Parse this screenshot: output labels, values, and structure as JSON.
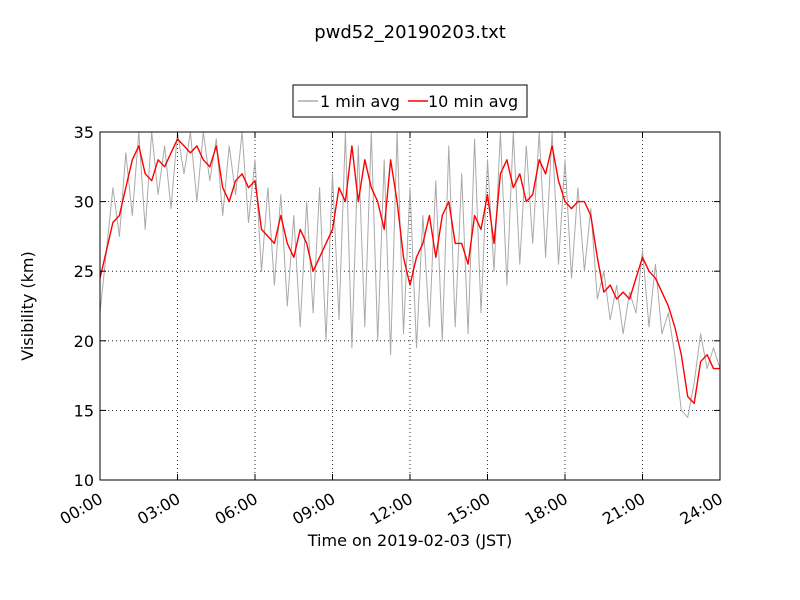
{
  "chart_data": {
    "type": "line",
    "title": "pwd52_20190203.txt",
    "xlabel": "Time on 2019-02-03 (JST)",
    "ylabel": "Visibility (km)",
    "xlim_hours": [
      0,
      24
    ],
    "ylim": [
      10,
      35
    ],
    "x_ticks": [
      0,
      3,
      6,
      9,
      12,
      15,
      18,
      21,
      24
    ],
    "x_tick_labels": [
      "00:00",
      "03:00",
      "06:00",
      "09:00",
      "12:00",
      "15:00",
      "18:00",
      "21:00",
      "24:00"
    ],
    "y_ticks": [
      10,
      15,
      20,
      25,
      30,
      35
    ],
    "y_tick_labels": [
      "10",
      "15",
      "20",
      "25",
      "30",
      "35"
    ],
    "grid": true,
    "legend_position": "top-center",
    "series": [
      {
        "name": "1 min avg",
        "color": "#aaaaaa",
        "x": [
          0.0,
          0.25,
          0.5,
          0.75,
          1.0,
          1.25,
          1.5,
          1.75,
          2.0,
          2.25,
          2.5,
          2.75,
          3.0,
          3.25,
          3.5,
          3.75,
          4.0,
          4.25,
          4.5,
          4.75,
          5.0,
          5.25,
          5.5,
          5.75,
          6.0,
          6.25,
          6.5,
          6.75,
          7.0,
          7.25,
          7.5,
          7.75,
          8.0,
          8.25,
          8.5,
          8.75,
          9.0,
          9.25,
          9.5,
          9.75,
          10.0,
          10.25,
          10.5,
          10.75,
          11.0,
          11.25,
          11.5,
          11.75,
          12.0,
          12.25,
          12.5,
          12.75,
          13.0,
          13.25,
          13.5,
          13.75,
          14.0,
          14.25,
          14.5,
          14.75,
          15.0,
          15.25,
          15.5,
          15.75,
          16.0,
          16.25,
          16.5,
          16.75,
          17.0,
          17.25,
          17.5,
          17.75,
          18.0,
          18.25,
          18.5,
          18.75,
          19.0,
          19.25,
          19.5,
          19.75,
          20.0,
          20.25,
          20.5,
          20.75,
          21.0,
          21.25,
          21.5,
          21.75,
          22.0,
          22.25,
          22.5,
          22.75,
          23.0,
          23.25,
          23.5,
          23.75,
          24.0
        ],
        "values": [
          22.0,
          26.5,
          31.0,
          27.5,
          33.5,
          29.0,
          35.0,
          28.0,
          35.0,
          30.5,
          34.0,
          29.5,
          35.0,
          32.0,
          35.0,
          30.0,
          35.0,
          31.5,
          34.5,
          29.0,
          34.0,
          30.5,
          35.0,
          28.5,
          33.0,
          25.0,
          31.0,
          24.0,
          30.5,
          22.5,
          29.0,
          21.0,
          30.0,
          22.0,
          31.0,
          20.0,
          32.0,
          21.5,
          35.0,
          19.5,
          34.0,
          21.0,
          35.0,
          20.0,
          33.0,
          19.0,
          35.0,
          20.5,
          31.0,
          19.5,
          29.0,
          21.0,
          31.5,
          20.0,
          34.0,
          21.0,
          32.0,
          20.5,
          34.5,
          22.0,
          33.0,
          25.0,
          35.0,
          24.0,
          35.0,
          25.5,
          34.0,
          27.0,
          35.0,
          26.0,
          35.0,
          25.5,
          33.0,
          24.5,
          31.0,
          25.0,
          29.5,
          23.0,
          25.0,
          21.5,
          24.0,
          20.5,
          23.5,
          22.0,
          26.5,
          21.0,
          25.5,
          20.5,
          22.0,
          19.0,
          15.0,
          14.5,
          17.0,
          20.5,
          18.0,
          19.5,
          18.0
        ]
      },
      {
        "name": "10 min avg",
        "color": "#ff0000",
        "x": [
          0.0,
          0.25,
          0.5,
          0.75,
          1.0,
          1.25,
          1.5,
          1.75,
          2.0,
          2.25,
          2.5,
          2.75,
          3.0,
          3.25,
          3.5,
          3.75,
          4.0,
          4.25,
          4.5,
          4.75,
          5.0,
          5.25,
          5.5,
          5.75,
          6.0,
          6.25,
          6.5,
          6.75,
          7.0,
          7.25,
          7.5,
          7.75,
          8.0,
          8.25,
          8.5,
          8.75,
          9.0,
          9.25,
          9.5,
          9.75,
          10.0,
          10.25,
          10.5,
          10.75,
          11.0,
          11.25,
          11.5,
          11.75,
          12.0,
          12.25,
          12.5,
          12.75,
          13.0,
          13.25,
          13.5,
          13.75,
          14.0,
          14.25,
          14.5,
          14.75,
          15.0,
          15.25,
          15.5,
          15.75,
          16.0,
          16.25,
          16.5,
          16.75,
          17.0,
          17.25,
          17.5,
          17.75,
          18.0,
          18.25,
          18.5,
          18.75,
          19.0,
          19.25,
          19.5,
          19.75,
          20.0,
          20.25,
          20.5,
          20.75,
          21.0,
          21.25,
          21.5,
          21.75,
          22.0,
          22.25,
          22.5,
          22.75,
          23.0,
          23.25,
          23.5,
          23.75,
          24.0
        ],
        "values": [
          24.5,
          26.5,
          28.5,
          29.0,
          31.0,
          33.0,
          34.0,
          32.0,
          31.5,
          33.0,
          32.5,
          33.5,
          34.5,
          34.0,
          33.5,
          34.0,
          33.0,
          32.5,
          34.0,
          31.0,
          30.0,
          31.5,
          32.0,
          31.0,
          31.5,
          28.0,
          27.5,
          27.0,
          29.0,
          27.0,
          26.0,
          28.0,
          27.0,
          25.0,
          26.0,
          27.0,
          28.0,
          31.0,
          30.0,
          34.0,
          30.0,
          33.0,
          31.0,
          30.0,
          28.0,
          33.0,
          30.0,
          26.0,
          24.0,
          26.0,
          27.0,
          29.0,
          26.0,
          29.0,
          30.0,
          27.0,
          27.0,
          25.5,
          29.0,
          28.0,
          30.5,
          27.0,
          32.0,
          33.0,
          31.0,
          32.0,
          30.0,
          30.5,
          33.0,
          32.0,
          34.0,
          31.5,
          30.0,
          29.5,
          30.0,
          30.0,
          29.0,
          26.0,
          23.5,
          24.0,
          23.0,
          23.5,
          23.0,
          24.5,
          26.0,
          25.0,
          24.5,
          23.5,
          22.5,
          21.0,
          19.0,
          16.0,
          15.5,
          18.5,
          19.0,
          18.0,
          18.0
        ]
      }
    ]
  }
}
